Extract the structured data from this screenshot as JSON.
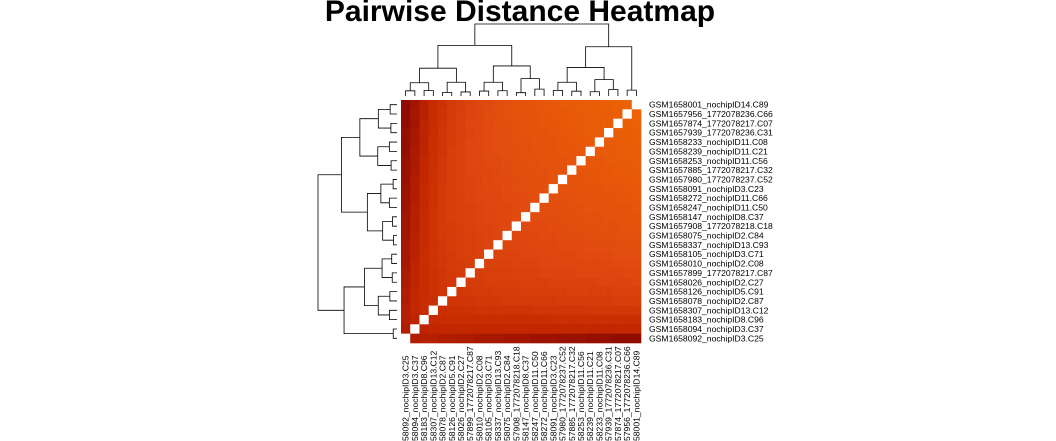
{
  "chart_data": {
    "type": "heatmap",
    "title": "Pairwise Distance Heatmap",
    "xlabel": "",
    "ylabel": "",
    "row_labels": [
      "GSM1658001_nochipID14.C89",
      "GSM1657956_1772078236.C66",
      "GSM1657874_1772078217.C07",
      "GSM1657939_1772078236.C31",
      "GSM1658233_nochipID11.C08",
      "GSM1658239_nochipID11.C21",
      "GSM1658253_nochipID11.C56",
      "GSM1657885_1772078217.C32",
      "GSM1657980_1772078237.C52",
      "GSM1658091_nochipID3.C23",
      "GSM1658272_nochipID11.C66",
      "GSM1658247_nochipID11.C50",
      "GSM1658147_nochipID8.C37",
      "GSM1657908_1772078218.C18",
      "GSM1658075_nochipID2.C84",
      "GSM1658337_nochipID13.C93",
      "GSM1658105_nochipID3.C71",
      "GSM1658010_nochipID2.C08",
      "GSM1657899_1772078217.C87",
      "GSM1658026_nochipID2.C27",
      "GSM1658126_nochipID5.C91",
      "GSM1658078_nochipID2.C87",
      "GSM1658307_nochipID13.C12",
      "GSM1658183_nochipID8.C96",
      "GSM1658094_nochipID3.C37",
      "GSM1658092_nochipID3.C25"
    ],
    "col_labels": [
      "58092_nochipID3.C25",
      "58094_nochipID3.C37",
      "58183_nochipID8.C96",
      "58307_nochipID13.C12",
      "58078_nochipID2.C87",
      "58126_nochipID5.C91",
      "58026_nochipID2.C27",
      "57899_1772078217.C87",
      "58010_nochipID2.C08",
      "58105_nochipID3.C71",
      "58337_nochipID13.C93",
      "58075_nochipID2.C84",
      "57908_1772078218.C18",
      "58147_nochipID8.C37",
      "58247_nochipID11.C50",
      "58272_nochipID11.C66",
      "58091_nochipID3.C23",
      "57980_1772078237.C52",
      "57885_1772078217.C32",
      "58253_nochipID11.C56",
      "58239_nochipID11.C21",
      "58233_nochipID11.C08",
      "57939_1772078236.C31",
      "57874_1772078217.C07",
      "57956_1772078236.C66",
      "58001_nochipID14.C89"
    ],
    "colors": {
      "low": "#7a0000",
      "mid_low": "#c42800",
      "mid": "#e04a10",
      "high": "#f06a00",
      "diagonal": "#ffffff"
    },
    "values": [
      [
        0.1,
        0.18,
        0.28,
        0.36,
        0.42,
        0.5,
        0.55,
        0.6,
        0.64,
        0.66,
        0.7,
        0.72,
        0.74,
        0.76,
        0.78,
        0.8,
        0.8,
        0.82,
        0.84,
        0.85,
        0.86,
        0.87,
        0.88,
        0.9,
        0.92,
        0.0
      ],
      [
        0.1,
        0.2,
        0.28,
        0.38,
        0.44,
        0.5,
        0.56,
        0.6,
        0.64,
        0.68,
        0.7,
        0.72,
        0.74,
        0.76,
        0.76,
        0.78,
        0.8,
        0.8,
        0.82,
        0.84,
        0.85,
        0.86,
        0.86,
        0.88,
        0.0,
        0.92
      ],
      [
        0.1,
        0.18,
        0.3,
        0.38,
        0.44,
        0.52,
        0.56,
        0.62,
        0.64,
        0.66,
        0.7,
        0.7,
        0.72,
        0.74,
        0.76,
        0.78,
        0.78,
        0.8,
        0.82,
        0.84,
        0.84,
        0.86,
        0.86,
        0.0,
        0.88,
        0.9
      ],
      [
        0.12,
        0.2,
        0.3,
        0.38,
        0.46,
        0.52,
        0.56,
        0.6,
        0.64,
        0.66,
        0.68,
        0.7,
        0.72,
        0.74,
        0.76,
        0.76,
        0.78,
        0.8,
        0.8,
        0.82,
        0.84,
        0.84,
        0.0,
        0.86,
        0.86,
        0.88
      ],
      [
        0.12,
        0.2,
        0.3,
        0.4,
        0.46,
        0.52,
        0.58,
        0.62,
        0.64,
        0.66,
        0.68,
        0.7,
        0.72,
        0.72,
        0.74,
        0.76,
        0.76,
        0.78,
        0.8,
        0.8,
        0.82,
        0.0,
        0.84,
        0.86,
        0.86,
        0.87
      ],
      [
        0.12,
        0.22,
        0.3,
        0.4,
        0.46,
        0.54,
        0.58,
        0.62,
        0.64,
        0.66,
        0.68,
        0.7,
        0.7,
        0.72,
        0.74,
        0.74,
        0.76,
        0.78,
        0.78,
        0.8,
        0.0,
        0.82,
        0.84,
        0.84,
        0.85,
        0.86
      ],
      [
        0.14,
        0.22,
        0.32,
        0.4,
        0.48,
        0.54,
        0.58,
        0.62,
        0.64,
        0.66,
        0.66,
        0.68,
        0.7,
        0.72,
        0.72,
        0.74,
        0.76,
        0.76,
        0.78,
        0.0,
        0.8,
        0.8,
        0.82,
        0.84,
        0.84,
        0.85
      ],
      [
        0.14,
        0.22,
        0.32,
        0.42,
        0.48,
        0.54,
        0.58,
        0.62,
        0.62,
        0.64,
        0.66,
        0.68,
        0.7,
        0.7,
        0.72,
        0.72,
        0.74,
        0.76,
        0.0,
        0.78,
        0.78,
        0.8,
        0.8,
        0.82,
        0.82,
        0.84
      ],
      [
        0.14,
        0.24,
        0.32,
        0.42,
        0.48,
        0.54,
        0.58,
        0.6,
        0.62,
        0.64,
        0.66,
        0.66,
        0.68,
        0.7,
        0.7,
        0.72,
        0.74,
        0.0,
        0.76,
        0.76,
        0.78,
        0.78,
        0.8,
        0.8,
        0.8,
        0.82
      ],
      [
        0.16,
        0.24,
        0.34,
        0.42,
        0.5,
        0.54,
        0.58,
        0.6,
        0.62,
        0.64,
        0.64,
        0.66,
        0.68,
        0.68,
        0.7,
        0.72,
        0.0,
        0.74,
        0.74,
        0.76,
        0.76,
        0.76,
        0.78,
        0.78,
        0.8,
        0.8
      ],
      [
        0.16,
        0.24,
        0.34,
        0.42,
        0.5,
        0.54,
        0.56,
        0.6,
        0.62,
        0.62,
        0.64,
        0.66,
        0.66,
        0.68,
        0.7,
        0.0,
        0.72,
        0.72,
        0.72,
        0.74,
        0.74,
        0.76,
        0.76,
        0.78,
        0.78,
        0.8
      ],
      [
        0.16,
        0.26,
        0.34,
        0.44,
        0.5,
        0.54,
        0.56,
        0.58,
        0.6,
        0.62,
        0.64,
        0.64,
        0.66,
        0.68,
        0.0,
        0.7,
        0.7,
        0.7,
        0.72,
        0.72,
        0.74,
        0.74,
        0.76,
        0.76,
        0.76,
        0.78
      ],
      [
        0.18,
        0.26,
        0.36,
        0.44,
        0.5,
        0.54,
        0.56,
        0.58,
        0.6,
        0.62,
        0.62,
        0.64,
        0.66,
        0.0,
        0.68,
        0.68,
        0.68,
        0.7,
        0.7,
        0.72,
        0.72,
        0.72,
        0.74,
        0.74,
        0.76,
        0.76
      ],
      [
        0.18,
        0.26,
        0.36,
        0.44,
        0.5,
        0.52,
        0.56,
        0.58,
        0.6,
        0.6,
        0.62,
        0.64,
        0.0,
        0.66,
        0.66,
        0.66,
        0.68,
        0.68,
        0.7,
        0.7,
        0.7,
        0.72,
        0.72,
        0.72,
        0.74,
        0.74
      ],
      [
        0.18,
        0.28,
        0.36,
        0.44,
        0.5,
        0.52,
        0.54,
        0.56,
        0.58,
        0.6,
        0.62,
        0.0,
        0.64,
        0.64,
        0.64,
        0.66,
        0.66,
        0.68,
        0.68,
        0.68,
        0.7,
        0.7,
        0.7,
        0.72,
        0.72,
        0.72
      ],
      [
        0.2,
        0.28,
        0.36,
        0.44,
        0.48,
        0.52,
        0.54,
        0.56,
        0.58,
        0.6,
        0.0,
        0.62,
        0.62,
        0.62,
        0.64,
        0.64,
        0.64,
        0.66,
        0.66,
        0.66,
        0.68,
        0.68,
        0.68,
        0.7,
        0.7,
        0.7
      ],
      [
        0.2,
        0.28,
        0.38,
        0.44,
        0.48,
        0.5,
        0.54,
        0.56,
        0.58,
        0.0,
        0.6,
        0.6,
        0.6,
        0.62,
        0.62,
        0.62,
        0.64,
        0.64,
        0.64,
        0.66,
        0.66,
        0.66,
        0.66,
        0.68,
        0.68,
        0.68
      ],
      [
        0.2,
        0.3,
        0.38,
        0.44,
        0.48,
        0.5,
        0.52,
        0.54,
        0.0,
        0.58,
        0.58,
        0.58,
        0.6,
        0.6,
        0.6,
        0.62,
        0.62,
        0.62,
        0.62,
        0.64,
        0.64,
        0.64,
        0.64,
        0.66,
        0.66,
        0.66
      ],
      [
        0.22,
        0.3,
        0.38,
        0.42,
        0.46,
        0.5,
        0.52,
        0.0,
        0.54,
        0.56,
        0.56,
        0.56,
        0.58,
        0.58,
        0.58,
        0.6,
        0.6,
        0.6,
        0.6,
        0.62,
        0.62,
        0.62,
        0.62,
        0.62,
        0.64,
        0.64
      ],
      [
        0.22,
        0.3,
        0.38,
        0.42,
        0.46,
        0.48,
        0.0,
        0.52,
        0.52,
        0.54,
        0.54,
        0.54,
        0.56,
        0.56,
        0.56,
        0.56,
        0.58,
        0.58,
        0.58,
        0.58,
        0.58,
        0.6,
        0.6,
        0.6,
        0.6,
        0.62
      ],
      [
        0.24,
        0.32,
        0.38,
        0.42,
        0.46,
        0.0,
        0.48,
        0.5,
        0.5,
        0.5,
        0.52,
        0.52,
        0.52,
        0.54,
        0.54,
        0.54,
        0.54,
        0.54,
        0.56,
        0.56,
        0.56,
        0.56,
        0.56,
        0.58,
        0.58,
        0.58
      ],
      [
        0.24,
        0.32,
        0.38,
        0.4,
        0.0,
        0.46,
        0.46,
        0.46,
        0.48,
        0.48,
        0.48,
        0.5,
        0.5,
        0.5,
        0.5,
        0.5,
        0.5,
        0.52,
        0.52,
        0.52,
        0.52,
        0.52,
        0.52,
        0.54,
        0.54,
        0.54
      ],
      [
        0.26,
        0.32,
        0.36,
        0.0,
        0.4,
        0.42,
        0.42,
        0.42,
        0.44,
        0.44,
        0.44,
        0.44,
        0.44,
        0.44,
        0.46,
        0.46,
        0.46,
        0.46,
        0.46,
        0.46,
        0.48,
        0.48,
        0.48,
        0.48,
        0.48,
        0.48
      ],
      [
        0.26,
        0.3,
        0.0,
        0.36,
        0.38,
        0.38,
        0.38,
        0.38,
        0.38,
        0.38,
        0.38,
        0.38,
        0.38,
        0.38,
        0.38,
        0.38,
        0.4,
        0.4,
        0.4,
        0.4,
        0.4,
        0.4,
        0.4,
        0.4,
        0.4,
        0.4
      ],
      [
        0.24,
        0.0,
        0.3,
        0.32,
        0.32,
        0.32,
        0.32,
        0.32,
        0.32,
        0.32,
        0.32,
        0.32,
        0.32,
        0.32,
        0.32,
        0.32,
        0.32,
        0.32,
        0.32,
        0.32,
        0.32,
        0.32,
        0.32,
        0.32,
        0.32,
        0.32
      ],
      [
        0.0,
        0.24,
        0.26,
        0.26,
        0.24,
        0.24,
        0.22,
        0.22,
        0.2,
        0.2,
        0.2,
        0.18,
        0.18,
        0.18,
        0.16,
        0.16,
        0.16,
        0.14,
        0.14,
        0.14,
        0.12,
        0.12,
        0.12,
        0.1,
        0.1,
        0.1
      ]
    ],
    "legend": false,
    "grid": false
  }
}
